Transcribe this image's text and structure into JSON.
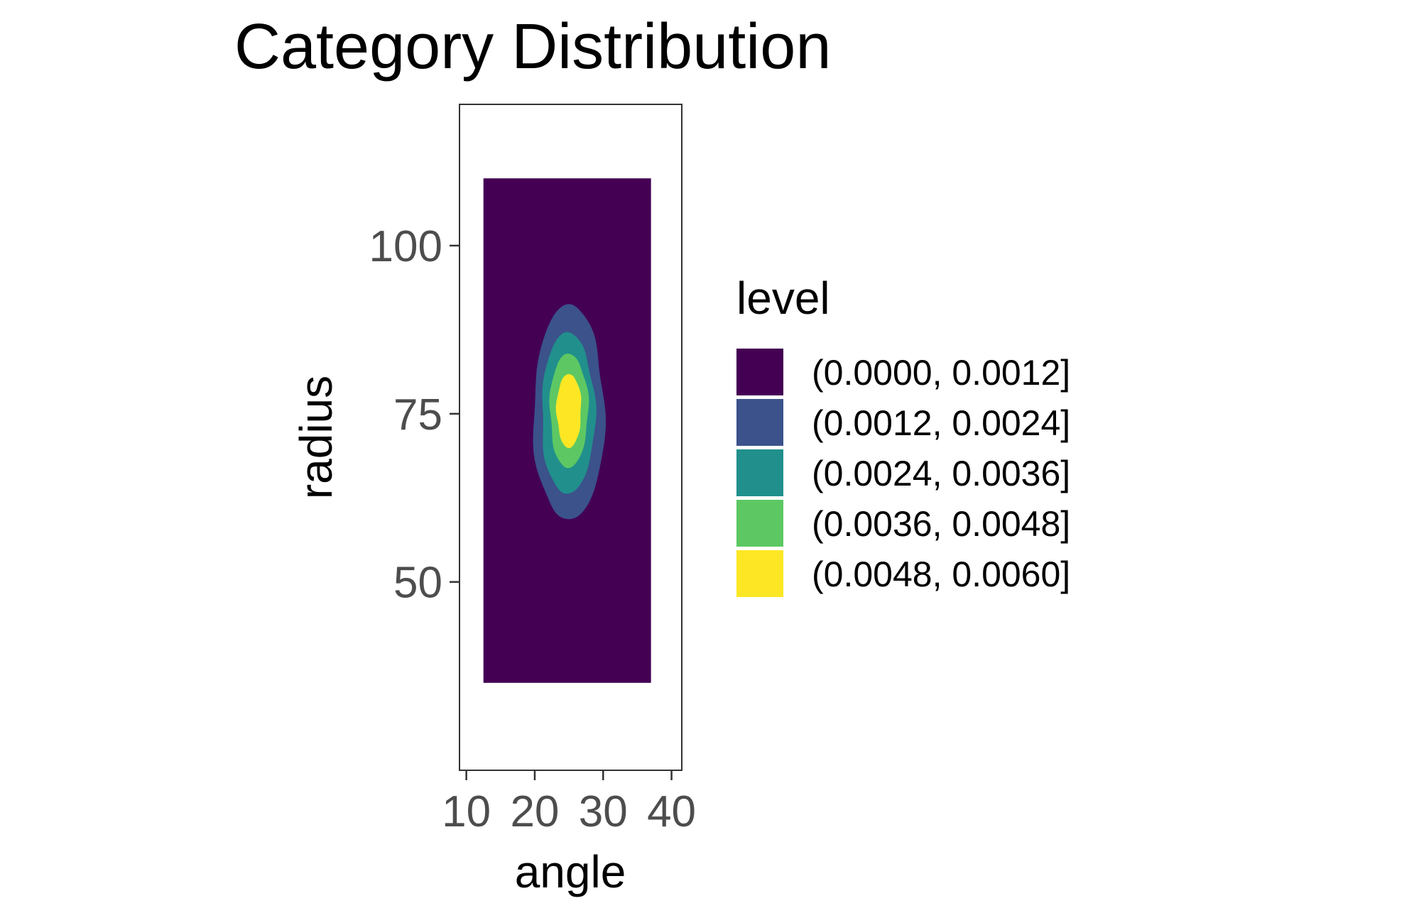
{
  "chart_data": {
    "type": "density_contour",
    "title": "Category Distribution",
    "xlabel": "angle",
    "ylabel": "radius",
    "xlim": [
      9,
      41.5
    ],
    "ylim": [
      22,
      121
    ],
    "x_ticks": [
      10,
      20,
      30,
      40
    ],
    "y_ticks": [
      50,
      75,
      100
    ],
    "x_tick_labels": [
      "10",
      "20",
      "30",
      "40"
    ],
    "y_tick_labels": [
      "50",
      "75",
      "100"
    ],
    "grid": false,
    "density_extent": {
      "x": [
        12.5,
        37
      ],
      "y": [
        35,
        110
      ]
    },
    "density_center": {
      "angle": 25,
      "radius": 75
    },
    "legend": {
      "title": "level",
      "position": "right",
      "entries": [
        {
          "label": "(0.0000, 0.0012]",
          "color": "#440154"
        },
        {
          "label": "(0.0012, 0.0024]",
          "color": "#3b528b"
        },
        {
          "label": "(0.0024, 0.0036]",
          "color": "#21908c"
        },
        {
          "label": "(0.0036, 0.0048]",
          "color": "#5dc863"
        },
        {
          "label": "(0.0048, 0.0060]",
          "color": "#fde725"
        }
      ]
    },
    "contours": [
      {
        "level": "(0.0012, 0.0024]",
        "x_range": [
          19.8,
          30.2
        ],
        "y_range": [
          59,
          91
        ]
      },
      {
        "level": "(0.0024, 0.0036]",
        "x_range": [
          21,
          28.8
        ],
        "y_range": [
          63,
          87
        ]
      },
      {
        "level": "(0.0036, 0.0048]",
        "x_range": [
          22.2,
          27.8
        ],
        "y_range": [
          67,
          84
        ]
      },
      {
        "level": "(0.0048, 0.0060]",
        "x_range": [
          23.2,
          26.8
        ],
        "y_range": [
          70,
          81
        ]
      }
    ]
  }
}
